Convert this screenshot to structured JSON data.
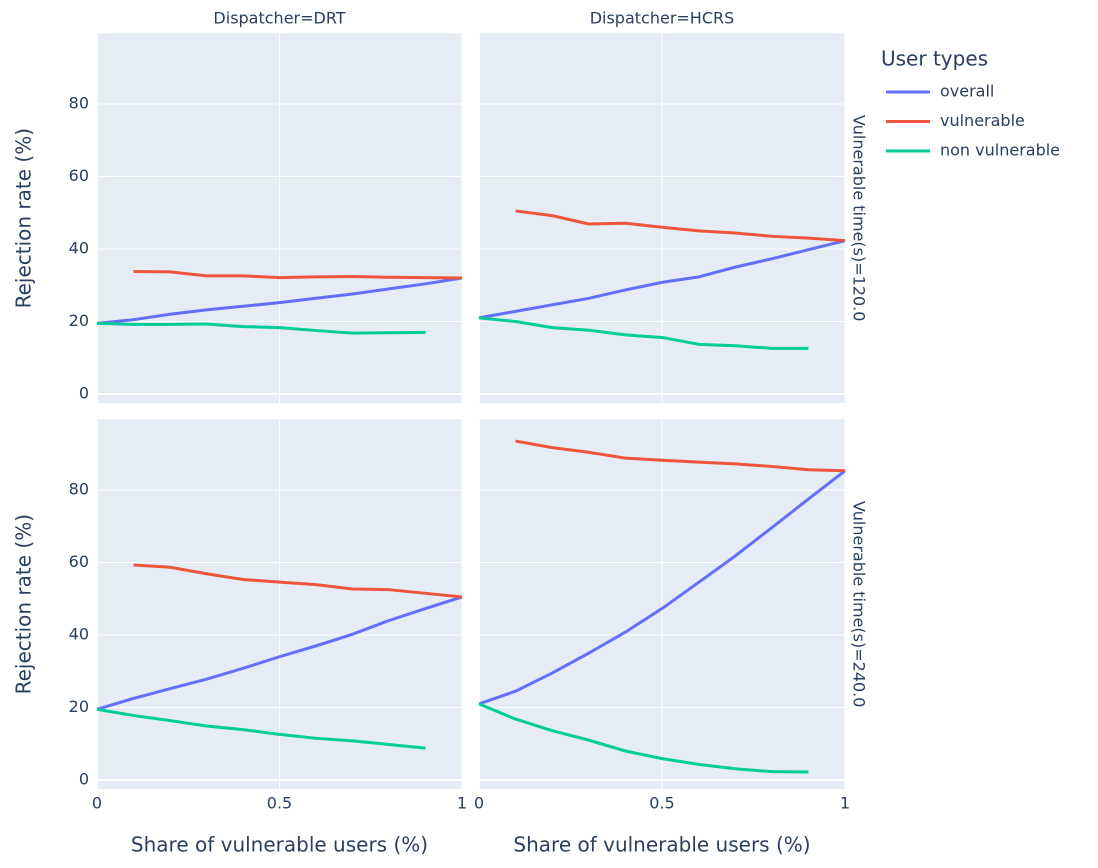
{
  "chart_data": {
    "type": "line",
    "columns": [
      "Dispatcher=DRT",
      "Dispatcher=HCRS"
    ],
    "rows": [
      "Vulnerable time(s)=120.0",
      "Vulnerable time(s)=240.0"
    ],
    "xlabel": "Share of vulnerable users (%)",
    "ylabel": "Rejection rate (%)",
    "xlim": [
      0,
      1
    ],
    "xticks": [
      0,
      0.5,
      1
    ],
    "ylim": [
      -2.5,
      99.5
    ],
    "yticks": [
      0,
      20,
      40,
      60,
      80
    ],
    "grid": true,
    "legend_title": "User types",
    "legend_position": "right",
    "x": [
      0,
      0.1,
      0.2,
      0.3,
      0.4,
      0.5,
      0.6,
      0.7,
      0.8,
      0.9,
      1
    ],
    "series": [
      {
        "name": "overall",
        "color": "#636efa",
        "values": [
          [
            19.5,
            20.5,
            22,
            23.2,
            24.2,
            25.2,
            26.4,
            27.6,
            29,
            30.4,
            32
          ],
          [
            21,
            22.8,
            24.6,
            26.4,
            28.7,
            30.8,
            32.3,
            35,
            37.3,
            39.8,
            42.3
          ],
          [
            19.5,
            22.5,
            25.2,
            27.8,
            30.8,
            34,
            37,
            40.2,
            44,
            47.3,
            50.5
          ],
          [
            21,
            24.5,
            29.5,
            35,
            40.8,
            47.3,
            54.5,
            61.8,
            69.6,
            77.5,
            85.3
          ]
        ]
      },
      {
        "name": "vulnerable",
        "color": "#ef553b",
        "values": [
          [
            null,
            33.8,
            33.7,
            32.6,
            32.6,
            32.1,
            32.3,
            32.4,
            32.2,
            32.1,
            32
          ],
          [
            null,
            50.5,
            49.2,
            46.9,
            47.1,
            46,
            45,
            44.4,
            43.5,
            43,
            42.3
          ],
          [
            null,
            59.3,
            58.7,
            56.9,
            55.3,
            54.6,
            53.9,
            52.7,
            52.5,
            51.5,
            50.5
          ],
          [
            null,
            93.5,
            91.7,
            90.4,
            88.8,
            88.2,
            87.7,
            87.2,
            86.5,
            85.6,
            85.3
          ]
        ]
      },
      {
        "name": "non vulnerable",
        "color": "#00cc96",
        "values": [
          [
            19.5,
            19.2,
            19.2,
            19.3,
            18.6,
            18.3,
            17.5,
            16.8,
            16.9,
            17,
            null
          ],
          [
            21,
            20,
            18.3,
            17.6,
            16.3,
            15.6,
            13.7,
            13.3,
            12.6,
            12.6,
            null
          ],
          [
            19.5,
            17.8,
            16.4,
            14.9,
            13.9,
            12.6,
            11.5,
            10.8,
            9.8,
            8.8,
            null
          ],
          [
            21,
            16.8,
            13.6,
            11,
            8,
            5.9,
            4.3,
            3.1,
            2.3,
            2.2,
            null
          ]
        ]
      }
    ]
  }
}
